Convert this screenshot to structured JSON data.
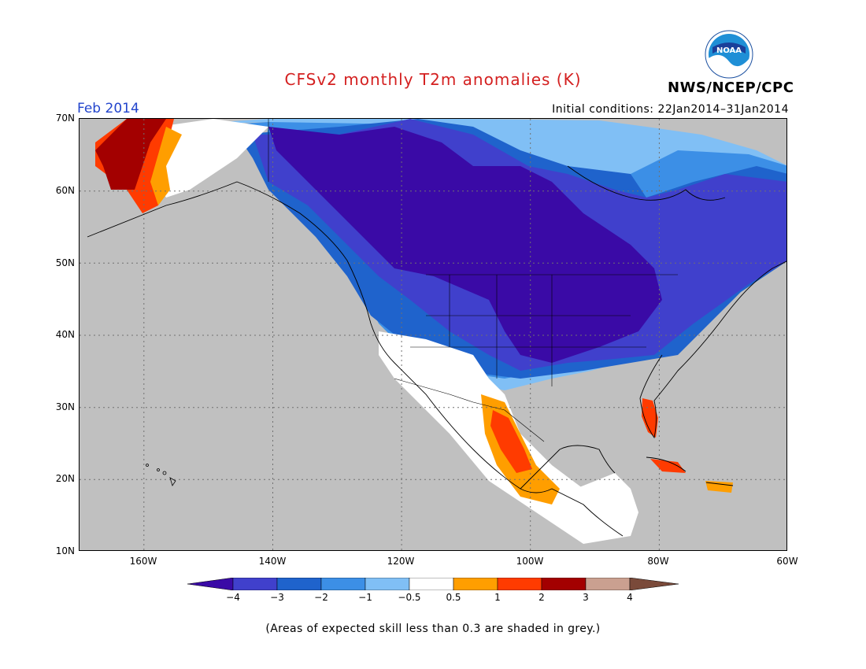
{
  "title": "CFSv2 monthly T2m anomalies (K)",
  "agency": "NWS/NCEP/CPC",
  "logo_text": "NOAA",
  "month": "Feb 2014",
  "initial_conditions": "Initial conditions: 22Jan2014–31Jan2014",
  "lat_labels": [
    "70N",
    "60N",
    "50N",
    "40N",
    "30N",
    "20N",
    "10N"
  ],
  "lon_labels": [
    "160W",
    "140W",
    "120W",
    "100W",
    "80W",
    "60W"
  ],
  "note": "(Areas of expected skill less than 0.3 are shaded in grey.)",
  "legend": {
    "labels": [
      "−4",
      "−3",
      "−2",
      "−1",
      "−0.5",
      "0.5",
      "1",
      "2",
      "3",
      "4"
    ],
    "colors": [
      "#3a0aa6",
      "#4040cc",
      "#1f63cc",
      "#3c8fe6",
      "#80bff5",
      "#ffffff",
      "#ff9e00",
      "#ff3b00",
      "#a30000",
      "#caa090",
      "#7a4a3a"
    ]
  },
  "colors": {
    "ocean_grey": "#c0c0c0",
    "strong_cold": "#3a0aa6",
    "cold": "#4040cc",
    "title_red": "#d42020",
    "month_blue": "#2244cc"
  }
}
